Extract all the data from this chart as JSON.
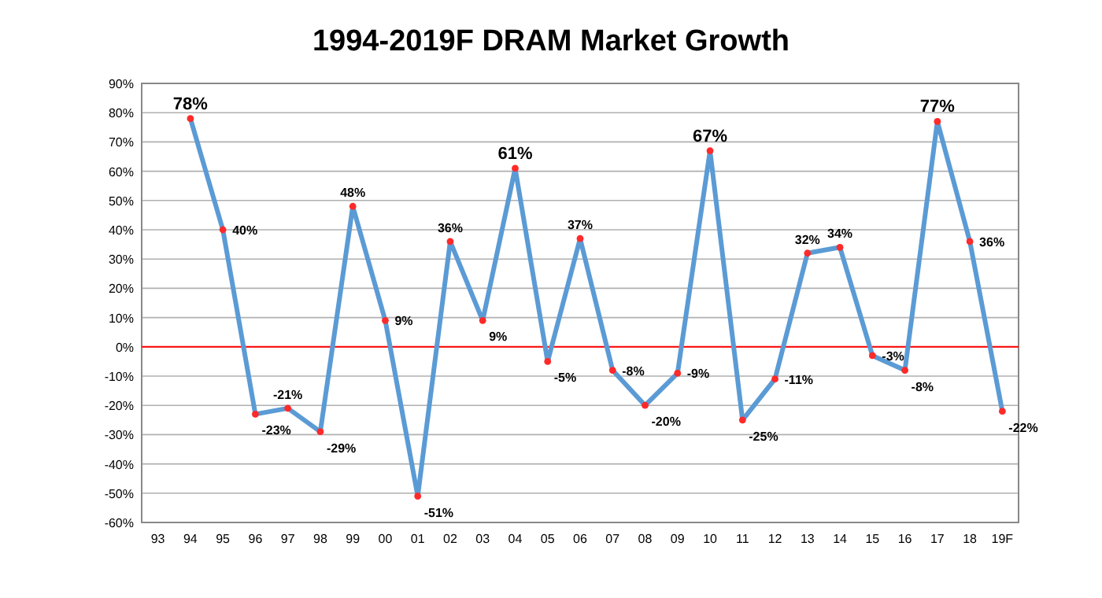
{
  "chart_data": {
    "type": "line",
    "title": "1994-2019F DRAM Market Growth",
    "categories": [
      "93",
      "94",
      "95",
      "96",
      "97",
      "98",
      "99",
      "00",
      "01",
      "02",
      "03",
      "04",
      "05",
      "06",
      "07",
      "08",
      "09",
      "10",
      "11",
      "12",
      "13",
      "14",
      "15",
      "16",
      "17",
      "18",
      "19F"
    ],
    "series": [
      {
        "color": "#5b9bd5",
        "values": [
          null,
          78,
          40,
          -23,
          -21,
          -29,
          48,
          9,
          -51,
          36,
          9,
          61,
          -5,
          37,
          -8,
          -20,
          -9,
          67,
          -25,
          -11,
          32,
          34,
          -3,
          -8,
          77,
          36,
          -22
        ]
      }
    ],
    "value_labels": [
      null,
      "78%",
      "40%",
      "-23%",
      "-21%",
      "-29%",
      "48%",
      "9%",
      "-51%",
      "36%",
      "9%",
      "61%",
      "-5%",
      "37%",
      "-8%",
      "-20%",
      "-9%",
      "67%",
      "-25%",
      "-11%",
      "32%",
      "34%",
      "-3%",
      "-8%",
      "77%",
      "36%",
      "-22%"
    ],
    "ylim": [
      -60,
      90
    ],
    "yticks": [
      {
        "value": -60,
        "label": "-60%"
      },
      {
        "value": -50,
        "label": "-50%"
      },
      {
        "value": -40,
        "label": "-40%"
      },
      {
        "value": -30,
        "label": "-30%"
      },
      {
        "value": -20,
        "label": "-20%"
      },
      {
        "value": -10,
        "label": "-10%"
      },
      {
        "value": 0,
        "label": "0%"
      },
      {
        "value": 10,
        "label": "10%"
      },
      {
        "value": 20,
        "label": "20%"
      },
      {
        "value": 30,
        "label": "30%"
      },
      {
        "value": 40,
        "label": "40%"
      },
      {
        "value": 50,
        "label": "50%"
      },
      {
        "value": 60,
        "label": "60%"
      },
      {
        "value": 70,
        "label": "70%"
      },
      {
        "value": 80,
        "label": "80%"
      },
      {
        "value": 90,
        "label": "90%"
      }
    ],
    "grid": "y",
    "marker": "circle",
    "line_style": "solid",
    "ref_lines": [
      {
        "axis": "y",
        "value": 0,
        "color": "#ff0000"
      }
    ]
  }
}
